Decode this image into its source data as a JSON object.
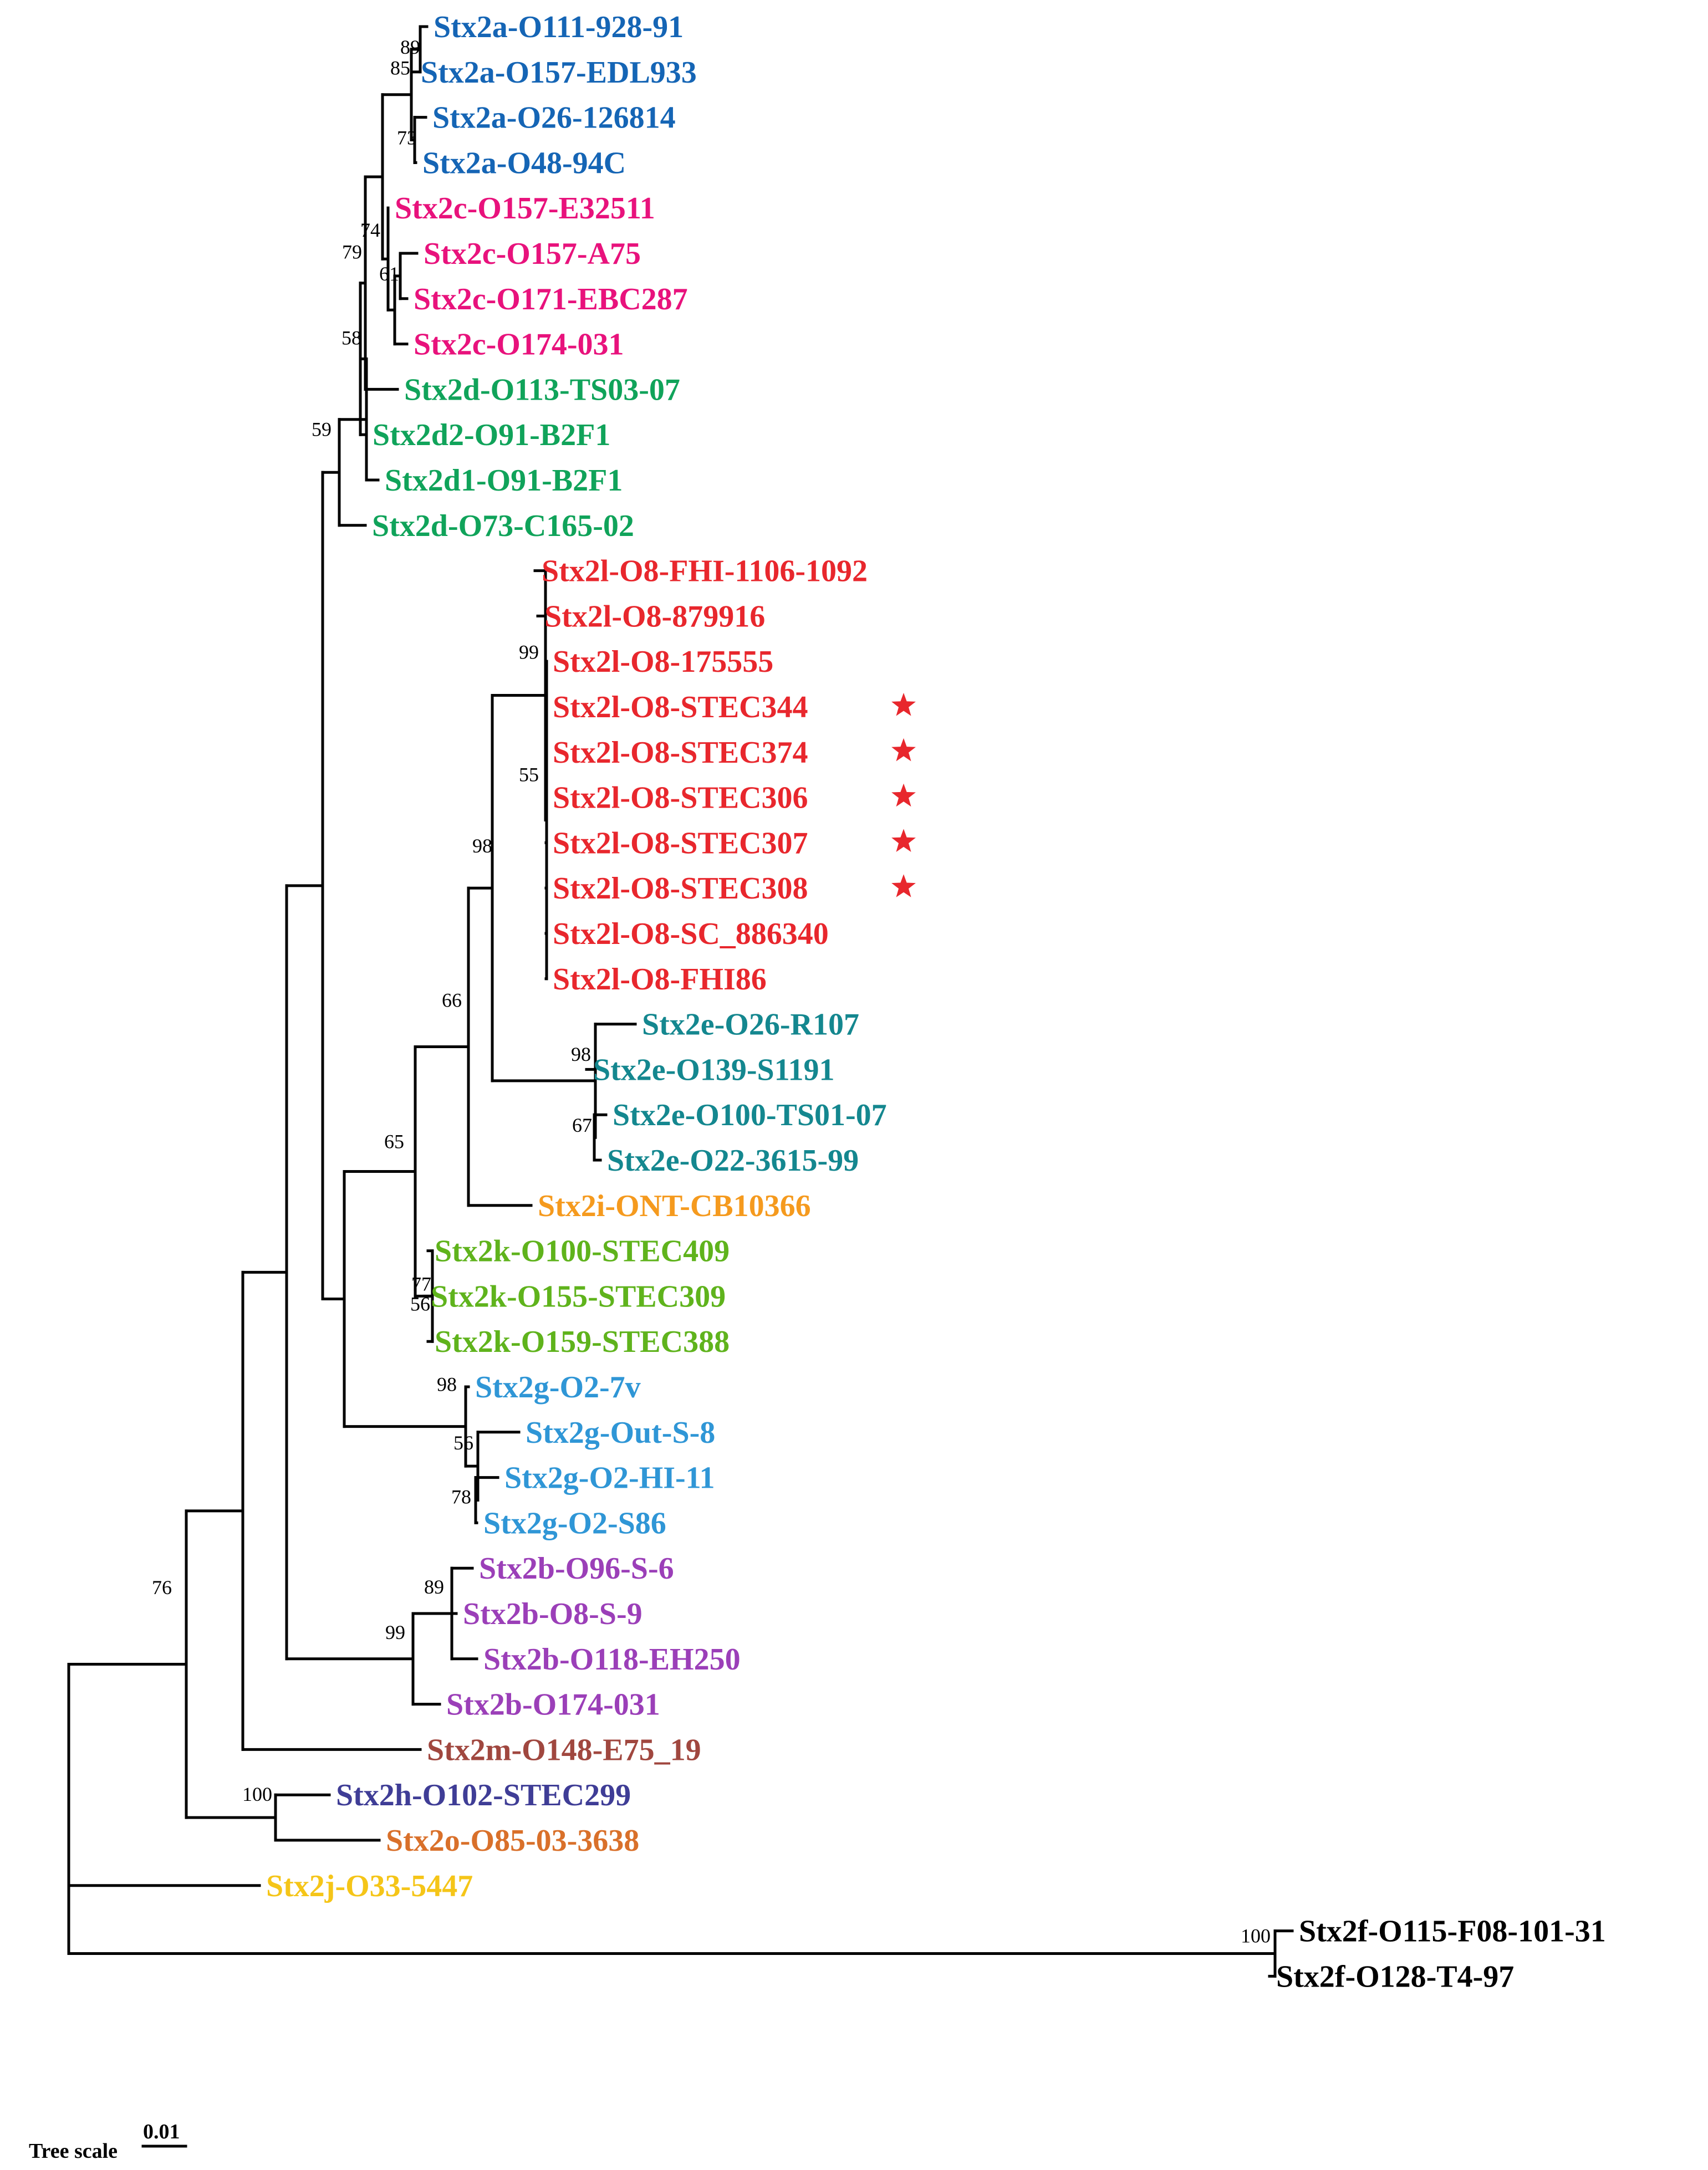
{
  "figure": {
    "scale": {
      "title": "Tree scale",
      "value": "0.01"
    },
    "colors": {
      "stx2a": "#1565b5",
      "stx2c": "#e8127c",
      "stx2d": "#10a35a",
      "stx2l": "#e8272d",
      "stx2e": "#14878f",
      "stx2i": "#f59a1e",
      "stx2k": "#5fb31c",
      "stx2g": "#2f96d6",
      "stx2b": "#9b3fb8",
      "stx2m": "#a0473f",
      "stx2h": "#3f3d96",
      "stx2o": "#d9702a",
      "stx2j": "#f5c518",
      "stx2f": "#000000",
      "star": "#e8272d"
    },
    "leaves": [
      {
        "label": "Stx2a-O111-928-91",
        "group": "stx2a"
      },
      {
        "label": "Stx2a-O157-EDL933",
        "group": "stx2a"
      },
      {
        "label": "Stx2a-O26-126814",
        "group": "stx2a"
      },
      {
        "label": "Stx2a-O48-94C",
        "group": "stx2a"
      },
      {
        "label": "Stx2c-O157-E32511",
        "group": "stx2c"
      },
      {
        "label": "Stx2c-O157-A75",
        "group": "stx2c"
      },
      {
        "label": "Stx2c-O171-EBC287",
        "group": "stx2c"
      },
      {
        "label": "Stx2c-O174-031",
        "group": "stx2c"
      },
      {
        "label": "Stx2d-O113-TS03-07",
        "group": "stx2d"
      },
      {
        "label": "Stx2d2-O91-B2F1",
        "group": "stx2d"
      },
      {
        "label": "Stx2d1-O91-B2F1",
        "group": "stx2d"
      },
      {
        "label": "Stx2d-O73-C165-02",
        "group": "stx2d"
      },
      {
        "label": "Stx2l-O8-FHI-1106-1092",
        "group": "stx2l"
      },
      {
        "label": "Stx2l-O8-879916",
        "group": "stx2l"
      },
      {
        "label": "Stx2l-O8-175555",
        "group": "stx2l"
      },
      {
        "label": "Stx2l-O8-STEC344",
        "group": "stx2l",
        "star": true
      },
      {
        "label": "Stx2l-O8-STEC374",
        "group": "stx2l",
        "star": true
      },
      {
        "label": "Stx2l-O8-STEC306",
        "group": "stx2l",
        "star": true
      },
      {
        "label": "Stx2l-O8-STEC307",
        "group": "stx2l",
        "star": true
      },
      {
        "label": "Stx2l-O8-STEC308",
        "group": "stx2l",
        "star": true
      },
      {
        "label": "Stx2l-O8-SC_886340",
        "group": "stx2l"
      },
      {
        "label": "Stx2l-O8-FHI86",
        "group": "stx2l"
      },
      {
        "label": "Stx2e-O26-R107",
        "group": "stx2e"
      },
      {
        "label": "Stx2e-O139-S1191",
        "group": "stx2e"
      },
      {
        "label": "Stx2e-O100-TS01-07",
        "group": "stx2e"
      },
      {
        "label": "Stx2e-O22-3615-99",
        "group": "stx2e"
      },
      {
        "label": "Stx2i-ONT-CB10366",
        "group": "stx2i"
      },
      {
        "label": "Stx2k-O100-STEC409",
        "group": "stx2k"
      },
      {
        "label": "Stx2k-O155-STEC309",
        "group": "stx2k"
      },
      {
        "label": "Stx2k-O159-STEC388",
        "group": "stx2k"
      },
      {
        "label": "Stx2g-O2-7v",
        "group": "stx2g"
      },
      {
        "label": "Stx2g-Out-S-8",
        "group": "stx2g"
      },
      {
        "label": "Stx2g-O2-HI-11",
        "group": "stx2g"
      },
      {
        "label": "Stx2g-O2-S86",
        "group": "stx2g"
      },
      {
        "label": "Stx2b-O96-S-6",
        "group": "stx2b"
      },
      {
        "label": "Stx2b-O8-S-9",
        "group": "stx2b"
      },
      {
        "label": "Stx2b-O118-EH250",
        "group": "stx2b"
      },
      {
        "label": "Stx2b-O174-031",
        "group": "stx2b"
      },
      {
        "label": "Stx2m-O148-E75_19",
        "group": "stx2m"
      },
      {
        "label": "Stx2h-O102-STEC299",
        "group": "stx2h"
      },
      {
        "label": "Stx2o-O85-03-3638",
        "group": "stx2o"
      },
      {
        "label": "Stx2j-O33-5447",
        "group": "stx2j"
      },
      {
        "label": "Stx2f-O115-F08-101-31",
        "group": "stx2f"
      },
      {
        "label": "Stx2f-O128-T4-97",
        "group": "stx2f"
      }
    ],
    "support_values": [
      "89",
      "85",
      "73",
      "74",
      "61",
      "79",
      "58",
      "59",
      "99",
      "55",
      "98",
      "98",
      "67",
      "66",
      "65",
      "77",
      "56",
      "98",
      "56",
      "78",
      "89",
      "99",
      "76",
      "100",
      "100"
    ]
  }
}
